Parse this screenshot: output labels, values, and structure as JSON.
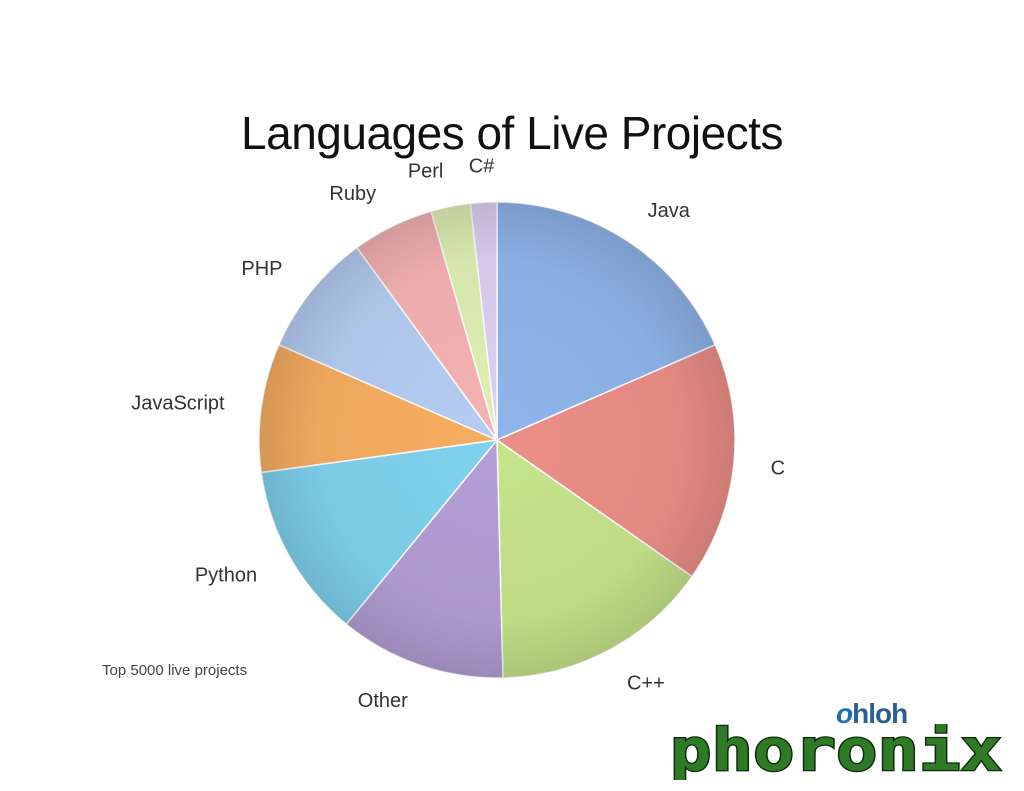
{
  "chart_data": {
    "type": "pie",
    "title": "Languages of Live Projects",
    "footnote": "Top 5000 live projects",
    "start_angle_deg": 0,
    "direction": "clockwise",
    "slices": [
      {
        "label": "Java",
        "percent": 18.6,
        "color": "#8fb5ea"
      },
      {
        "label": "C",
        "percent": 16.4,
        "color": "#ec8f88"
      },
      {
        "label": "C++",
        "percent": 15.0,
        "color": "#c6e48a"
      },
      {
        "label": "Other",
        "percent": 11.4,
        "color": "#b49ed6"
      },
      {
        "label": "Python",
        "percent": 12.0,
        "color": "#7fd2ee"
      },
      {
        "label": "JavaScript",
        "percent": 8.8,
        "color": "#f7ae62"
      },
      {
        "label": "PHP",
        "percent": 8.5,
        "color": "#b5cdf2"
      },
      {
        "label": "Ruby",
        "percent": 5.6,
        "color": "#f5b3b3"
      },
      {
        "label": "Perl",
        "percent": 2.7,
        "color": "#dff0b4"
      },
      {
        "label": "C#",
        "percent": 1.8,
        "color": "#ddd1f2"
      }
    ]
  },
  "logos": {
    "ohloh_o": "o",
    "ohloh_text": "hloh",
    "phoronix": "phoronix",
    "phoronix_color": "#2f7a26"
  }
}
